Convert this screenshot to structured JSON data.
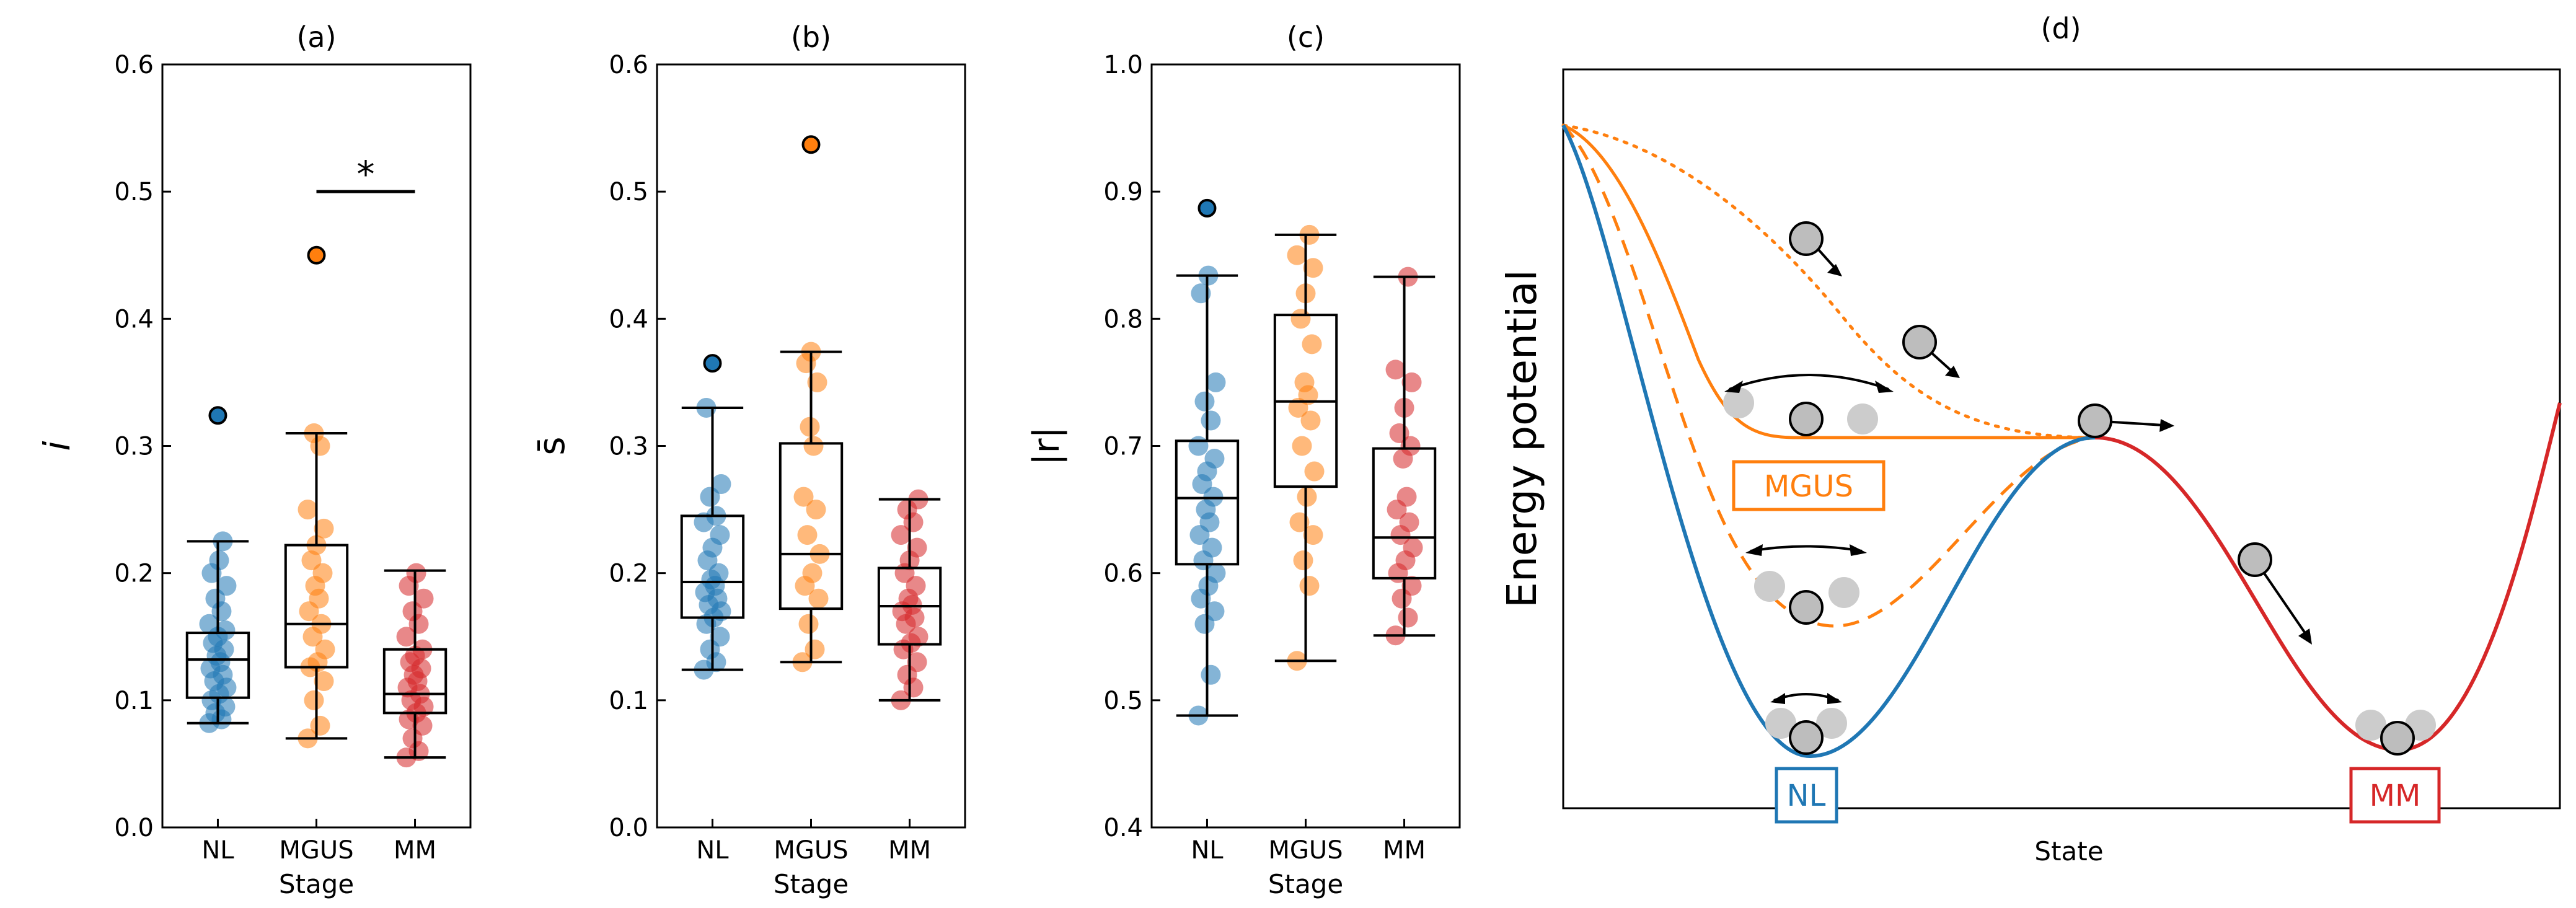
{
  "chart_data": [
    {
      "panel": "(a)",
      "type": "box",
      "title": "(a)",
      "xlabel": "Stage",
      "ylabel": "i",
      "ylim": [
        0,
        0.6
      ],
      "yticks": [
        "0.0",
        "0.1",
        "0.2",
        "0.3",
        "0.4",
        "0.5",
        "0.6"
      ],
      "categories": [
        "NL",
        "MGUS",
        "MM"
      ],
      "colors": [
        "#1f77b4",
        "#ff7f0e",
        "#d62728"
      ],
      "boxes": [
        {
          "name": "NL",
          "whisker_low": 0.082,
          "q1": 0.102,
          "median": 0.132,
          "q3": 0.153,
          "whisker_high": 0.225
        },
        {
          "name": "MGUS",
          "whisker_low": 0.07,
          "q1": 0.126,
          "median": 0.16,
          "q3": 0.222,
          "whisker_high": 0.31
        },
        {
          "name": "MM",
          "whisker_low": 0.055,
          "q1": 0.09,
          "median": 0.105,
          "q3": 0.14,
          "whisker_high": 0.202
        }
      ],
      "points": [
        [
          0.082,
          0.085,
          0.09,
          0.095,
          0.1,
          0.105,
          0.11,
          0.115,
          0.12,
          0.125,
          0.13,
          0.135,
          0.14,
          0.145,
          0.15,
          0.155,
          0.16,
          0.17,
          0.18,
          0.19,
          0.2,
          0.21,
          0.225
        ],
        [
          0.07,
          0.08,
          0.1,
          0.115,
          0.126,
          0.13,
          0.14,
          0.15,
          0.16,
          0.17,
          0.18,
          0.19,
          0.2,
          0.21,
          0.222,
          0.235,
          0.25,
          0.3,
          0.31
        ],
        [
          0.055,
          0.06,
          0.07,
          0.08,
          0.085,
          0.09,
          0.095,
          0.1,
          0.105,
          0.11,
          0.115,
          0.12,
          0.125,
          0.13,
          0.135,
          0.14,
          0.15,
          0.16,
          0.17,
          0.18,
          0.19,
          0.2
        ]
      ],
      "outliers": [
        [
          0.324
        ],
        [
          0.45
        ],
        []
      ],
      "significance": {
        "label": "*",
        "from": "MGUS",
        "to": "MM",
        "y": 0.5
      }
    },
    {
      "panel": "(b)",
      "type": "box",
      "title": "(b)",
      "xlabel": "Stage",
      "ylabel": "s̄",
      "ylim": [
        0,
        0.6
      ],
      "yticks": [
        "0.0",
        "0.1",
        "0.2",
        "0.3",
        "0.4",
        "0.5",
        "0.6"
      ],
      "categories": [
        "NL",
        "MGUS",
        "MM"
      ],
      "colors": [
        "#1f77b4",
        "#ff7f0e",
        "#d62728"
      ],
      "boxes": [
        {
          "name": "NL",
          "whisker_low": 0.124,
          "q1": 0.165,
          "median": 0.193,
          "q3": 0.245,
          "whisker_high": 0.33
        },
        {
          "name": "MGUS",
          "whisker_low": 0.13,
          "q1": 0.172,
          "median": 0.215,
          "q3": 0.302,
          "whisker_high": 0.374
        },
        {
          "name": "MM",
          "whisker_low": 0.1,
          "q1": 0.144,
          "median": 0.174,
          "q3": 0.204,
          "whisker_high": 0.258
        }
      ],
      "points": [
        [
          0.124,
          0.13,
          0.14,
          0.15,
          0.16,
          0.165,
          0.17,
          0.175,
          0.18,
          0.185,
          0.19,
          0.195,
          0.2,
          0.21,
          0.22,
          0.23,
          0.24,
          0.245,
          0.26,
          0.27,
          0.33
        ],
        [
          0.13,
          0.14,
          0.16,
          0.18,
          0.19,
          0.2,
          0.215,
          0.23,
          0.25,
          0.26,
          0.3,
          0.315,
          0.35,
          0.365,
          0.374
        ],
        [
          0.1,
          0.11,
          0.12,
          0.13,
          0.14,
          0.145,
          0.15,
          0.16,
          0.165,
          0.17,
          0.175,
          0.18,
          0.19,
          0.2,
          0.21,
          0.22,
          0.23,
          0.24,
          0.25,
          0.258
        ]
      ],
      "outliers": [
        [
          0.365
        ],
        [
          0.537
        ],
        []
      ]
    },
    {
      "panel": "(c)",
      "type": "box",
      "title": "(c)",
      "xlabel": "Stage",
      "ylabel": "|r|",
      "ylim": [
        0.4,
        1.0
      ],
      "yticks": [
        "0.4",
        "0.5",
        "0.6",
        "0.7",
        "0.8",
        "0.9",
        "1.0"
      ],
      "categories": [
        "NL",
        "MGUS",
        "MM"
      ],
      "colors": [
        "#1f77b4",
        "#ff7f0e",
        "#d62728"
      ],
      "boxes": [
        {
          "name": "NL",
          "whisker_low": 0.488,
          "q1": 0.607,
          "median": 0.659,
          "q3": 0.704,
          "whisker_high": 0.834
        },
        {
          "name": "MGUS",
          "whisker_low": 0.531,
          "q1": 0.668,
          "median": 0.735,
          "q3": 0.803,
          "whisker_high": 0.866
        },
        {
          "name": "MM",
          "whisker_low": 0.551,
          "q1": 0.596,
          "median": 0.628,
          "q3": 0.698,
          "whisker_high": 0.833
        }
      ],
      "points": [
        [
          0.488,
          0.52,
          0.56,
          0.57,
          0.58,
          0.59,
          0.6,
          0.61,
          0.62,
          0.63,
          0.64,
          0.65,
          0.66,
          0.67,
          0.68,
          0.69,
          0.7,
          0.72,
          0.735,
          0.75,
          0.82,
          0.834
        ],
        [
          0.531,
          0.59,
          0.61,
          0.63,
          0.64,
          0.66,
          0.68,
          0.7,
          0.72,
          0.73,
          0.74,
          0.75,
          0.78,
          0.8,
          0.82,
          0.84,
          0.85,
          0.866
        ],
        [
          0.551,
          0.565,
          0.58,
          0.59,
          0.6,
          0.61,
          0.62,
          0.63,
          0.64,
          0.65,
          0.66,
          0.69,
          0.7,
          0.71,
          0.73,
          0.75,
          0.76,
          0.833
        ]
      ],
      "outliers": [
        [
          0.887
        ],
        [],
        []
      ]
    }
  ],
  "diagram": {
    "title": "(d)",
    "ylabel": "Energy potential",
    "xlabel": "State",
    "labels": {
      "nl": "NL",
      "mgus": "MGUS",
      "mm": "MM"
    },
    "colors": {
      "nl": "#1f77b4",
      "mgus": "#ff7f0e",
      "mm": "#d62728",
      "ball": "#bdbdbd",
      "ghost": "#cccccc"
    }
  }
}
